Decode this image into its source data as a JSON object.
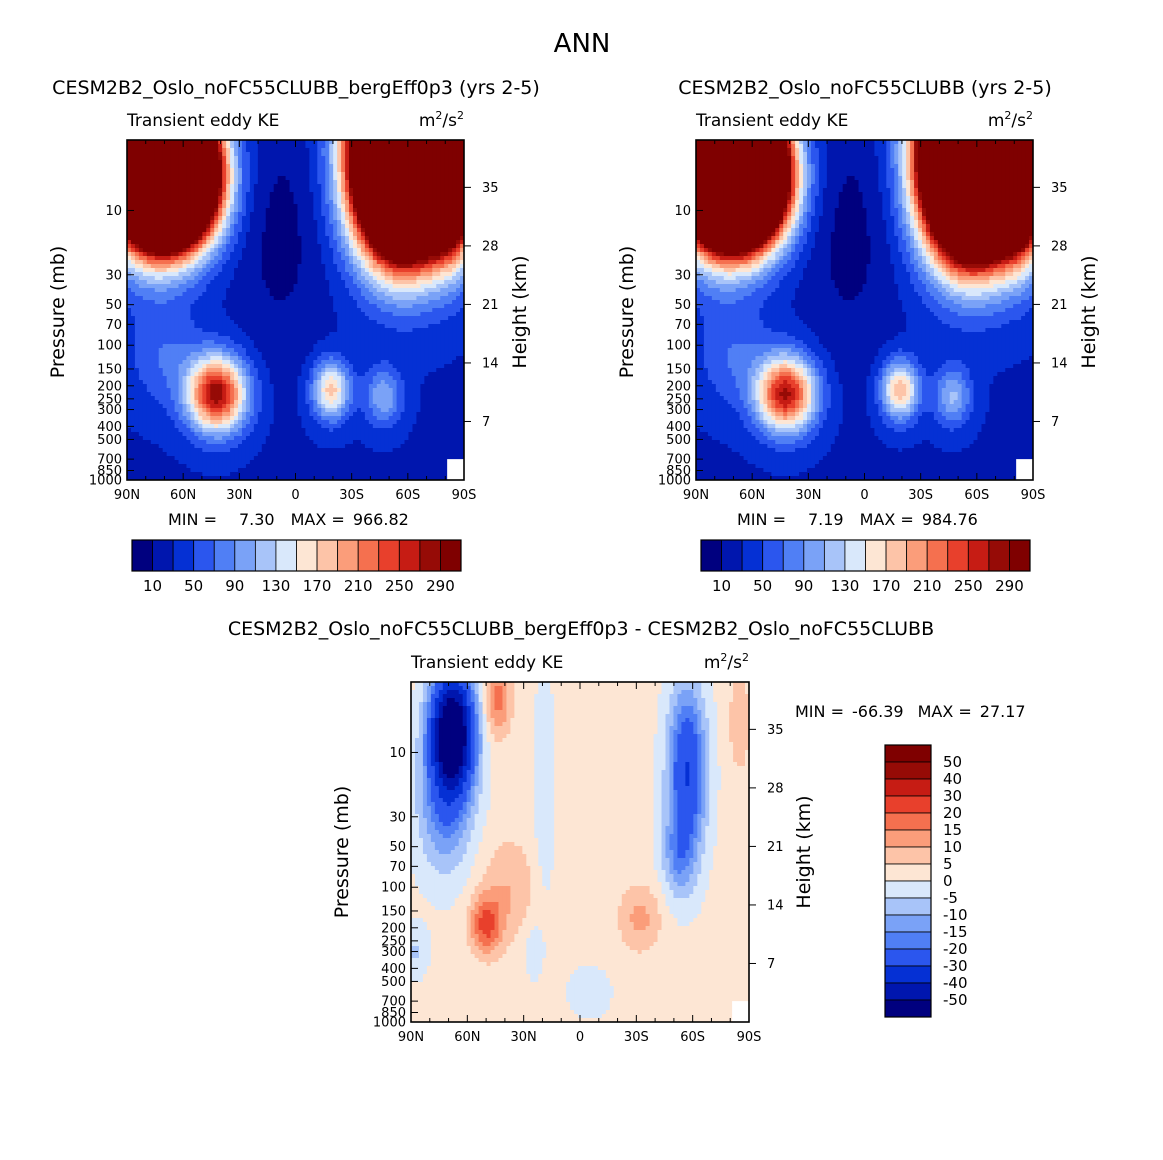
{
  "figure_title": "ANN",
  "chart_data": [
    {
      "type": "heatmap",
      "id": "p1",
      "title": "CESM2B2_Oslo_noFC55CLUBB_bergEff0p3 (yrs 2-5)",
      "variable": "Transient eddy KE",
      "units": "m²/s²",
      "units_base": "m",
      "units_sup": "2",
      "units_slash": "/s",
      "xlabel": "",
      "ylabel": "Pressure (mb)",
      "y2label": "Height (km)",
      "x_ticks": [
        "90N",
        "60N",
        "30N",
        "0",
        "30S",
        "60S",
        "90S"
      ],
      "x_tick_values": [
        90,
        60,
        30,
        0,
        -30,
        -60,
        -90
      ],
      "y_ticks": [
        "10",
        "30",
        "50",
        "70",
        "100",
        "150",
        "200",
        "250",
        "300",
        "400",
        "500",
        "700",
        "850",
        "1000"
      ],
      "y_tick_values": [
        10,
        30,
        50,
        70,
        100,
        150,
        200,
        250,
        300,
        400,
        500,
        700,
        850,
        1000
      ],
      "height_ticks": [
        "35",
        "28",
        "21",
        "14",
        "7"
      ],
      "height_tick_values": [
        35,
        28,
        21,
        14,
        7
      ],
      "ylim": [
        1000,
        3
      ],
      "min_label": "MIN =",
      "min_value": "7.30",
      "max_label": "MAX =",
      "max_value": "966.82",
      "levels": [
        10,
        30,
        50,
        70,
        90,
        110,
        130,
        150,
        170,
        190,
        210,
        230,
        250,
        270,
        290
      ],
      "colorbar_labels": [
        "10",
        "50",
        "90",
        "130",
        "170",
        "210",
        "250",
        "290"
      ],
      "field": {
        "base": 28,
        "features": [
          {
            "lat": 77,
            "p": 3,
            "amp": 1200,
            "slat": 16,
            "sp": 1.0
          },
          {
            "lat": 62,
            "p": 6,
            "amp": 600,
            "slat": 15,
            "sp": 0.7
          },
          {
            "lat": -58,
            "p": 4,
            "amp": 1200,
            "slat": 17,
            "sp": 1.05
          },
          {
            "lat": -84,
            "p": 5,
            "amp": 400,
            "slat": 9,
            "sp": 0.9
          },
          {
            "lat": 42,
            "p": 230,
            "amp": 255,
            "slat": 11,
            "sp": 0.45
          },
          {
            "lat": -19,
            "p": 215,
            "amp": 150,
            "slat": 7,
            "sp": 0.35
          },
          {
            "lat": -47,
            "p": 240,
            "amp": 80,
            "slat": 7,
            "sp": 0.35
          },
          {
            "lat": 70,
            "p": 120,
            "amp": 40,
            "slat": 14,
            "sp": 0.6
          },
          {
            "lat": 8,
            "p": 15,
            "amp": -25,
            "slat": 16,
            "sp": 1.4
          }
        ]
      }
    },
    {
      "type": "heatmap",
      "id": "p2",
      "title": "CESM2B2_Oslo_noFC55CLUBB (yrs 2-5)",
      "variable": "Transient eddy KE",
      "units": "m²/s²",
      "units_base": "m",
      "units_sup": "2",
      "units_slash": "/s",
      "xlabel": "",
      "ylabel": "Pressure (mb)",
      "y2label": "Height (km)",
      "x_ticks": [
        "90N",
        "60N",
        "30N",
        "0",
        "30S",
        "60S",
        "90S"
      ],
      "x_tick_values": [
        90,
        60,
        30,
        0,
        -30,
        -60,
        -90
      ],
      "y_ticks": [
        "10",
        "30",
        "50",
        "70",
        "100",
        "150",
        "200",
        "250",
        "300",
        "400",
        "500",
        "700",
        "850",
        "1000"
      ],
      "y_tick_values": [
        10,
        30,
        50,
        70,
        100,
        150,
        200,
        250,
        300,
        400,
        500,
        700,
        850,
        1000
      ],
      "height_ticks": [
        "35",
        "28",
        "21",
        "14",
        "7"
      ],
      "height_tick_values": [
        35,
        28,
        21,
        14,
        7
      ],
      "ylim": [
        1000,
        3
      ],
      "min_label": "MIN =",
      "min_value": "7.19",
      "max_label": "MAX =",
      "max_value": "984.76",
      "levels": [
        10,
        30,
        50,
        70,
        90,
        110,
        130,
        150,
        170,
        190,
        210,
        230,
        250,
        270,
        290
      ],
      "colorbar_labels": [
        "10",
        "50",
        "90",
        "130",
        "170",
        "210",
        "250",
        "290"
      ],
      "field": {
        "base": 28,
        "features": [
          {
            "lat": 77,
            "p": 3,
            "amp": 1200,
            "slat": 16,
            "sp": 1.0
          },
          {
            "lat": 62,
            "p": 6,
            "amp": 620,
            "slat": 15,
            "sp": 0.7
          },
          {
            "lat": -58,
            "p": 4,
            "amp": 1250,
            "slat": 17,
            "sp": 1.05
          },
          {
            "lat": -84,
            "p": 5,
            "amp": 420,
            "slat": 9,
            "sp": 0.9
          },
          {
            "lat": 42,
            "p": 230,
            "amp": 245,
            "slat": 11,
            "sp": 0.45
          },
          {
            "lat": -19,
            "p": 215,
            "amp": 160,
            "slat": 7,
            "sp": 0.35
          },
          {
            "lat": -47,
            "p": 240,
            "amp": 85,
            "slat": 7,
            "sp": 0.35
          },
          {
            "lat": 70,
            "p": 120,
            "amp": 40,
            "slat": 14,
            "sp": 0.6
          },
          {
            "lat": 8,
            "p": 15,
            "amp": -25,
            "slat": 16,
            "sp": 1.4
          }
        ]
      }
    },
    {
      "type": "heatmap",
      "id": "p3",
      "title": "CESM2B2_Oslo_noFC55CLUBB_bergEff0p3 - CESM2B2_Oslo_noFC55CLUBB",
      "variable": "Transient eddy KE",
      "units": "m²/s²",
      "units_base": "m",
      "units_sup": "2",
      "units_slash": "/s",
      "xlabel": "",
      "ylabel": "Pressure (mb)",
      "y2label": "Height (km)",
      "x_ticks": [
        "90N",
        "60N",
        "30N",
        "0",
        "30S",
        "60S",
        "90S"
      ],
      "x_tick_values": [
        90,
        60,
        30,
        0,
        -30,
        -60,
        -90
      ],
      "y_ticks": [
        "10",
        "30",
        "50",
        "70",
        "100",
        "150",
        "200",
        "250",
        "300",
        "400",
        "500",
        "700",
        "850",
        "1000"
      ],
      "y_tick_values": [
        10,
        30,
        50,
        70,
        100,
        150,
        200,
        250,
        300,
        400,
        500,
        700,
        850,
        1000
      ],
      "height_ticks": [
        "35",
        "28",
        "21",
        "14",
        "7"
      ],
      "height_tick_values": [
        35,
        28,
        21,
        14,
        7
      ],
      "ylim": [
        1000,
        3
      ],
      "min_label": "MIN =",
      "min_value": "-66.39",
      "max_label": "MAX =",
      "max_value": "27.17",
      "levels": [
        -50,
        -40,
        -30,
        -20,
        -15,
        -10,
        -5,
        0,
        5,
        10,
        15,
        20,
        30,
        40,
        50
      ],
      "colorbar_labels": [
        "50",
        "40",
        "30",
        "20",
        "15",
        "10",
        "5",
        "0",
        "-5",
        "-10",
        "-15",
        "-20",
        "-30",
        "-40",
        "-50"
      ],
      "field": {
        "base": 1.5,
        "features": [
          {
            "lat": 68,
            "p": 7,
            "amp": -70,
            "slat": 8,
            "sp": 0.7
          },
          {
            "lat": 72,
            "p": 25,
            "amp": -18,
            "slat": 10,
            "sp": 0.8
          },
          {
            "lat": -57,
            "p": 14,
            "amp": -32,
            "slat": 7,
            "sp": 1.0
          },
          {
            "lat": -52,
            "p": 60,
            "amp": -12,
            "slat": 6,
            "sp": 0.5
          },
          {
            "lat": 44,
            "p": 4,
            "amp": 16,
            "slat": 5,
            "sp": 0.45
          },
          {
            "lat": -85,
            "p": 6,
            "amp": 8,
            "slat": 4,
            "sp": 0.6
          },
          {
            "lat": 50,
            "p": 190,
            "amp": 20,
            "slat": 6,
            "sp": 0.35
          },
          {
            "lat": 38,
            "p": 100,
            "amp": 8,
            "slat": 10,
            "sp": 0.6
          },
          {
            "lat": -32,
            "p": 170,
            "amp": 10,
            "slat": 8,
            "sp": 0.4
          },
          {
            "lat": 19,
            "p": 20,
            "amp": -5,
            "slat": 4,
            "sp": 1.5
          },
          {
            "lat": 88,
            "p": 300,
            "amp": -7,
            "slat": 5,
            "sp": 0.3
          },
          {
            "lat": 25,
            "p": 300,
            "amp": -6,
            "slat": 3,
            "sp": 0.3
          },
          {
            "lat": -5,
            "p": 600,
            "amp": -5,
            "slat": 8,
            "sp": 0.3
          }
        ]
      }
    }
  ],
  "colors": {
    "palette": [
      "#00007f",
      "#0016ae",
      "#0530d4",
      "#2b56ee",
      "#507ff5",
      "#7aa2f7",
      "#a8c4f9",
      "#d9e8fb",
      "#fde6d4",
      "#fdc4a8",
      "#fb9d7a",
      "#f5704f",
      "#e8402c",
      "#c61c14",
      "#960b06",
      "#7f0000"
    ]
  }
}
